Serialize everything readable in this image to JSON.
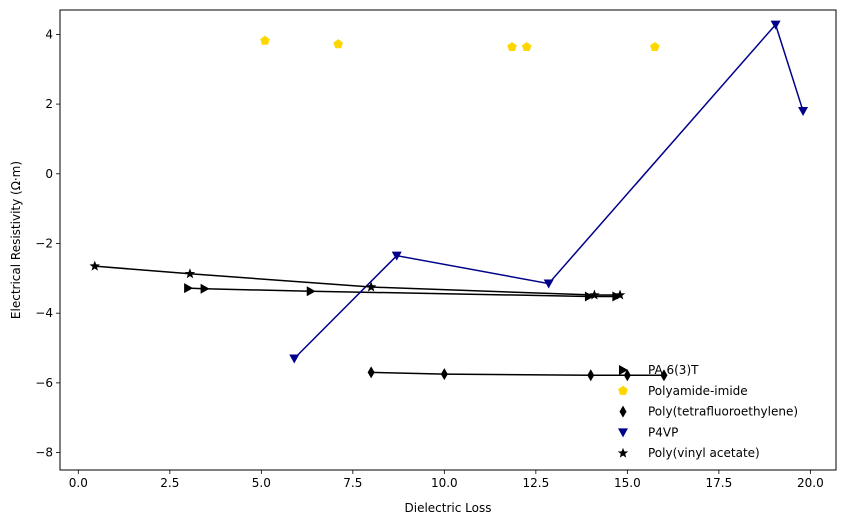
{
  "chart_data": {
    "type": "scatter",
    "xlabel": "Dielectric Loss",
    "ylabel": "Electrical Resistivity (Ω·m)",
    "xlim": [
      -0.5,
      20.7
    ],
    "ylim": [
      -8.5,
      4.7
    ],
    "xticks": [
      0.0,
      2.5,
      5.0,
      7.5,
      10.0,
      12.5,
      15.0,
      17.5,
      20.0
    ],
    "xtick_labels": [
      "0.0",
      "2.5",
      "5.0",
      "7.5",
      "10.0",
      "12.5",
      "15.0",
      "17.5",
      "20.0"
    ],
    "yticks": [
      -8,
      -6,
      -4,
      -2,
      0,
      2,
      4
    ],
    "ytick_labels": [
      "−8",
      "−6",
      "−4",
      "−2",
      "0",
      "2",
      "4"
    ],
    "grid": false,
    "legend_position": "lower-right",
    "series": [
      {
        "name": "PA 6(3)T",
        "marker": "triangle-right",
        "color": "#000000",
        "line": true,
        "line_color": "#000000",
        "points": [
          [
            3.0,
            -3.28
          ],
          [
            3.45,
            -3.3
          ],
          [
            6.35,
            -3.37
          ],
          [
            13.95,
            -3.52
          ],
          [
            14.7,
            -3.52
          ]
        ]
      },
      {
        "name": "Polyamide-imide",
        "marker": "pentagon",
        "color": "#FFD700",
        "line": false,
        "points": [
          [
            5.1,
            3.82
          ],
          [
            7.1,
            3.72
          ],
          [
            11.85,
            3.64
          ],
          [
            12.25,
            3.64
          ],
          [
            15.75,
            3.64
          ]
        ]
      },
      {
        "name": "Poly(tetrafluoroethylene)",
        "marker": "thin-diamond",
        "color": "#000000",
        "line": true,
        "line_color": "#000000",
        "points": [
          [
            8.0,
            -5.7
          ],
          [
            10.0,
            -5.75
          ],
          [
            14.0,
            -5.78
          ],
          [
            15.0,
            -5.78
          ],
          [
            16.0,
            -5.78
          ]
        ]
      },
      {
        "name": "P4VP",
        "marker": "triangle-down",
        "color": "#00008B",
        "line": true,
        "line_color": "#00008B",
        "points": [
          [
            5.9,
            -5.3
          ],
          [
            8.7,
            -2.35
          ],
          [
            12.85,
            -3.15
          ],
          [
            19.05,
            4.28
          ],
          [
            19.8,
            1.8
          ]
        ]
      },
      {
        "name": "Poly(vinyl acetate)",
        "marker": "star",
        "color": "#000000",
        "line": true,
        "line_color": "#000000",
        "points": [
          [
            0.45,
            -2.65
          ],
          [
            3.05,
            -2.87
          ],
          [
            8.0,
            -3.25
          ],
          [
            14.1,
            -3.48
          ],
          [
            14.8,
            -3.48
          ]
        ]
      }
    ]
  }
}
